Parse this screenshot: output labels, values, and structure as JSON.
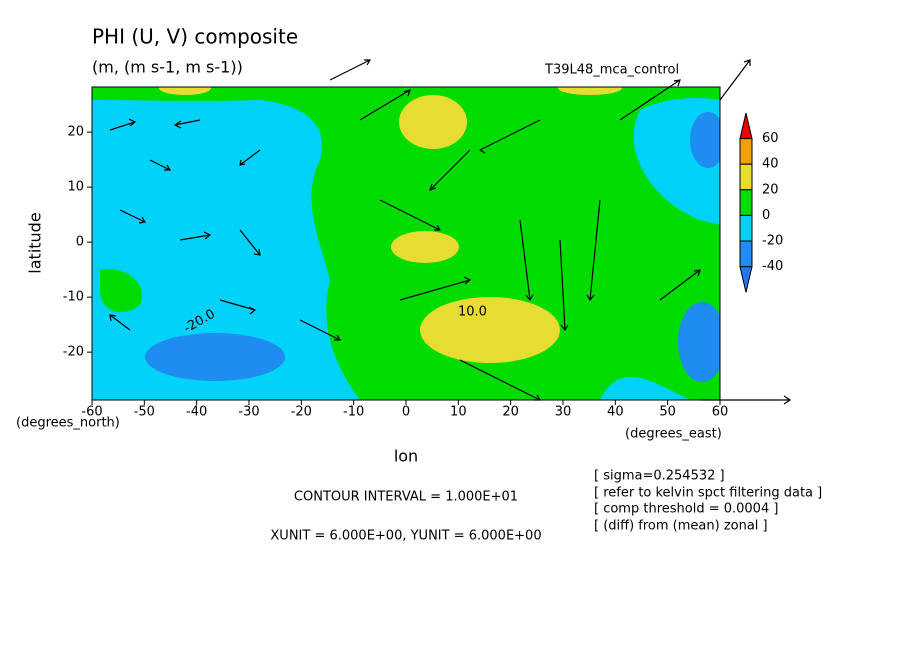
{
  "chart_data": {
    "type": "contour",
    "title": "PHI (U, V) composite",
    "subtitle": "(m, (m s-1, m s-1))",
    "run_label": "T39L48_mca_control",
    "x_label": "lon",
    "y_label": "latitude",
    "x_unit": "(degrees_east)",
    "y_unit": "(degrees_north)",
    "xlim": [
      -60,
      60
    ],
    "ylim": [
      -28.7,
      28.2
    ],
    "xticks": [
      -60,
      -50,
      -40,
      -30,
      -20,
      -10,
      0,
      10,
      20,
      30,
      40,
      50,
      60
    ],
    "yticks": [
      -20,
      -10,
      0,
      10,
      20
    ],
    "contour_labels": [
      "-20.0",
      "10.0"
    ],
    "colorbar": {
      "levels": [
        60,
        40,
        20,
        0,
        -20,
        -40
      ],
      "colors": [
        "#f00000",
        "#f0a000",
        "#e6dc32",
        "#00dc00",
        "#00d2fa",
        "#1e8cf0",
        "#1e78f0"
      ]
    },
    "footer": [
      "CONTOUR INTERVAL = 1.000E+01",
      "XUNIT = 6.000E+00, YUNIT = 6.000E+00"
    ],
    "notes": [
      "[ sigma=0.254532 ]",
      "[ refer to kelvin spct filtering data ]",
      "[ comp threshold = 0.0004 ]",
      "[ (diff) from (mean) zonal ]"
    ]
  }
}
